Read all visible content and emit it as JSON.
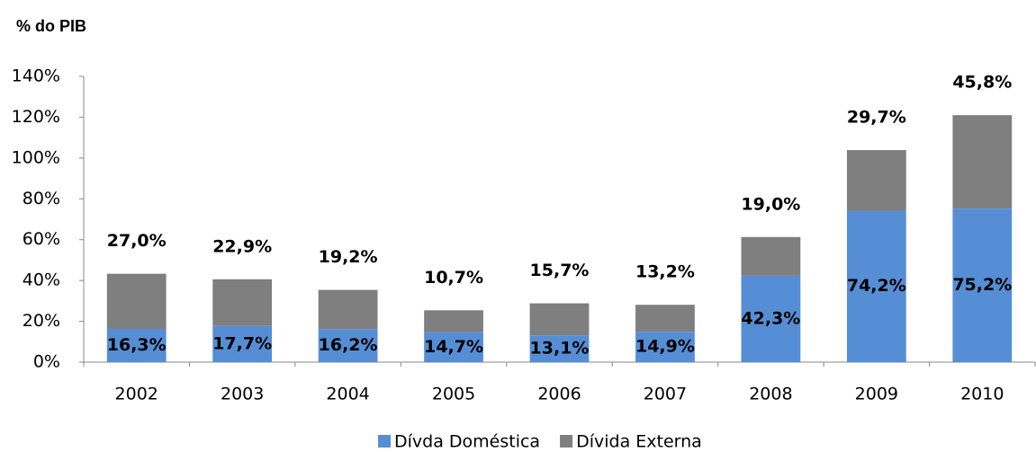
{
  "chart_data": {
    "type": "stacked_bar",
    "title": "% do PIB",
    "categories": [
      "2002",
      "2003",
      "2004",
      "2005",
      "2006",
      "2007",
      "2008",
      "2009",
      "2010"
    ],
    "series": [
      {
        "name": "Dívda Doméstica",
        "color": "#558ed5",
        "values": [
          16.3,
          17.7,
          16.2,
          14.7,
          13.1,
          14.9,
          42.3,
          74.2,
          75.2
        ],
        "value_labels": [
          "16,3%",
          "17,7%",
          "16,2%",
          "14,7%",
          "13,1%",
          "14,9%",
          "42,3%",
          "74,2%",
          "75,2%"
        ]
      },
      {
        "name": "Dívida Externa",
        "color": "#7f7f7f",
        "values": [
          27.0,
          22.9,
          19.2,
          10.7,
          15.7,
          13.2,
          19.0,
          29.7,
          45.8
        ],
        "value_labels": [
          "27,0%",
          "22,9%",
          "19,2%",
          "10,7%",
          "15,7%",
          "13,2%",
          "19,0%",
          "29,7%",
          "45,8%"
        ]
      }
    ],
    "ylim": [
      0,
      140
    ],
    "yticks": [
      {
        "value": 0,
        "label": "0%"
      },
      {
        "value": 20,
        "label": "20%"
      },
      {
        "value": 40,
        "label": "40%"
      },
      {
        "value": 60,
        "label": "60%"
      },
      {
        "value": 80,
        "label": "80%"
      },
      {
        "value": 100,
        "label": "100%"
      },
      {
        "value": 120,
        "label": "120%"
      },
      {
        "value": 140,
        "label": "140%"
      }
    ],
    "grid": false,
    "legend": "bottom"
  }
}
